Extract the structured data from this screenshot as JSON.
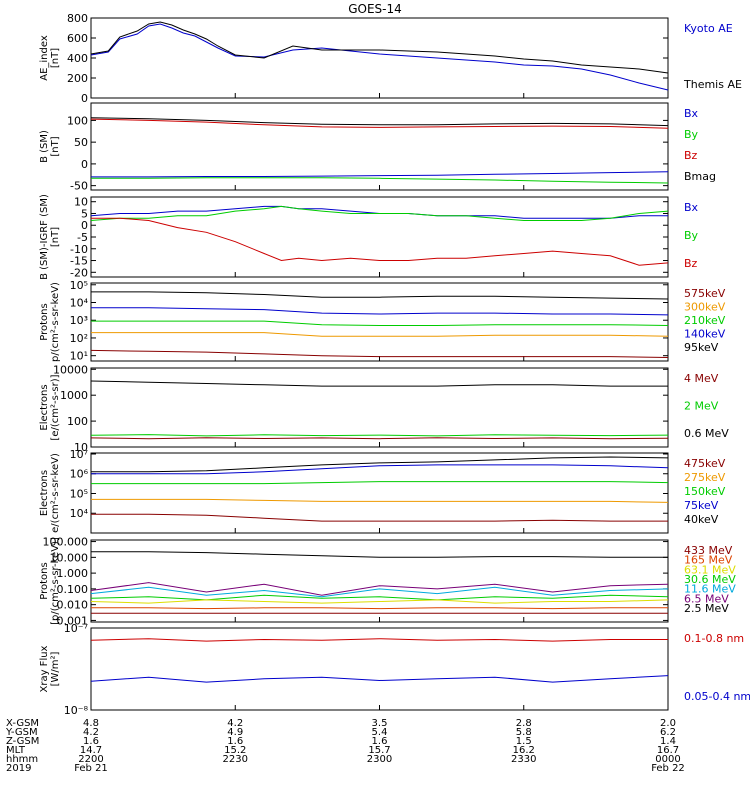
{
  "title": "GOES-14",
  "colors": {
    "black": "#000000",
    "blue": "#0000cc",
    "green": "#00cc00",
    "red": "#cc0000",
    "orange": "#ee9900",
    "cyan": "#00aadd",
    "yellow": "#dddd00",
    "purple": "#770077",
    "darkred": "#880000",
    "redorange": "#dd4400"
  },
  "chart_data": [
    {
      "type": "line",
      "panel": "ae",
      "ylabel": [
        "AE_index",
        "[nT]"
      ],
      "scale": "linear",
      "ylim": [
        0,
        800
      ],
      "yticks": [
        "0",
        "200",
        "400",
        "600",
        "800"
      ],
      "yticks_values": [
        0,
        200,
        400,
        600,
        800
      ],
      "x": [
        0,
        3,
        5,
        8,
        10,
        12,
        14,
        16,
        18,
        20,
        22,
        25,
        30,
        35,
        40,
        45,
        50,
        55,
        60,
        65,
        70,
        75,
        80,
        85,
        90,
        95,
        100
      ],
      "series": [
        {
          "name": "Kyoto AE",
          "color": "blue",
          "values": [
            430,
            460,
            590,
            640,
            720,
            740,
            700,
            650,
            620,
            560,
            500,
            420,
            410,
            480,
            500,
            470,
            440,
            420,
            400,
            380,
            360,
            330,
            320,
            290,
            230,
            150,
            80
          ]
        },
        {
          "name": "Themis AE",
          "color": "black",
          "values": [
            440,
            470,
            610,
            670,
            740,
            760,
            730,
            680,
            640,
            590,
            520,
            430,
            400,
            520,
            480,
            480,
            480,
            470,
            460,
            440,
            420,
            390,
            370,
            330,
            310,
            290,
            250
          ]
        }
      ],
      "legend": [
        {
          "label": "Kyoto AE",
          "color": "blue"
        },
        {
          "label": "Themis AE",
          "color": "black"
        }
      ]
    },
    {
      "type": "line",
      "panel": "bsm",
      "ylabel": [
        "B (SM)",
        "[nT]"
      ],
      "scale": "linear",
      "ylim": [
        -60,
        140
      ],
      "yticks": [
        "-50",
        "0",
        "50",
        "100"
      ],
      "yticks_values": [
        -50,
        0,
        50,
        100
      ],
      "x": [
        0,
        10,
        20,
        30,
        40,
        50,
        60,
        70,
        80,
        90,
        100
      ],
      "series": [
        {
          "name": "Bx",
          "color": "blue",
          "values": [
            -30,
            -30,
            -29,
            -29,
            -28,
            -27,
            -26,
            -24,
            -22,
            -20,
            -18
          ]
        },
        {
          "name": "By",
          "color": "green",
          "values": [
            -33,
            -33,
            -32,
            -32,
            -32,
            -33,
            -35,
            -37,
            -40,
            -42,
            -44
          ]
        },
        {
          "name": "Bz",
          "color": "red",
          "values": [
            103,
            100,
            96,
            90,
            85,
            84,
            85,
            86,
            87,
            86,
            82
          ]
        },
        {
          "name": "Bmag",
          "color": "black",
          "values": [
            106,
            104,
            100,
            95,
            91,
            90,
            90,
            92,
            93,
            92,
            88
          ]
        }
      ],
      "legend": [
        {
          "label": "Bx",
          "color": "blue"
        },
        {
          "label": "By",
          "color": "green"
        },
        {
          "label": "Bz",
          "color": "red"
        },
        {
          "label": "Bmag",
          "color": "black"
        }
      ]
    },
    {
      "type": "line",
      "panel": "bigrf",
      "ylabel": [
        "B (SM)-IGRF (SM)",
        "[nT]"
      ],
      "scale": "linear",
      "ylim": [
        -22,
        12
      ],
      "yticks": [
        "-20",
        "-15",
        "-10",
        "-5",
        "0",
        "5",
        "10"
      ],
      "yticks_values": [
        -20,
        -15,
        -10,
        -5,
        0,
        5,
        10
      ],
      "x": [
        0,
        5,
        10,
        15,
        20,
        25,
        30,
        33,
        36,
        40,
        45,
        50,
        55,
        60,
        65,
        70,
        75,
        80,
        85,
        90,
        95,
        100
      ],
      "series": [
        {
          "name": "Bx",
          "color": "blue",
          "values": [
            4,
            5,
            5,
            6,
            6,
            7,
            8,
            8,
            7,
            7,
            6,
            5,
            5,
            4,
            4,
            4,
            3,
            3,
            3,
            3,
            4,
            4
          ]
        },
        {
          "name": "By",
          "color": "green",
          "values": [
            2,
            3,
            3,
            4,
            4,
            6,
            7,
            8,
            7,
            6,
            5,
            5,
            5,
            4,
            4,
            3,
            2,
            2,
            2,
            3,
            5,
            6
          ]
        },
        {
          "name": "Bz",
          "color": "red",
          "values": [
            3,
            3,
            2,
            -1,
            -3,
            -7,
            -12,
            -15,
            -14,
            -15,
            -14,
            -15,
            -15,
            -14,
            -14,
            -13,
            -12,
            -11,
            -12,
            -13,
            -17,
            -16
          ]
        }
      ],
      "legend": [
        {
          "label": "Bx",
          "color": "blue"
        },
        {
          "label": "By",
          "color": "green"
        },
        {
          "label": "Bz",
          "color": "red"
        }
      ]
    },
    {
      "type": "line",
      "panel": "protons_low",
      "ylabel": [
        "Protons",
        "p/(cm²-s-sr-keV)"
      ],
      "scale": "log",
      "ylim_exp": [
        0.7,
        5.1
      ],
      "yticks": [
        "10¹",
        "10²",
        "10³",
        "10⁴",
        "10⁵"
      ],
      "yticks_values": [
        1,
        2,
        3,
        4,
        5
      ],
      "x": [
        0,
        10,
        20,
        30,
        40,
        50,
        60,
        70,
        80,
        90,
        100
      ],
      "series": [
        {
          "name": "95keV",
          "color": "black",
          "values": [
            4.6,
            4.6,
            4.55,
            4.45,
            4.3,
            4.3,
            4.35,
            4.35,
            4.3,
            4.25,
            4.2
          ]
        },
        {
          "name": "140keV",
          "color": "blue",
          "values": [
            3.7,
            3.7,
            3.65,
            3.6,
            3.4,
            3.35,
            3.4,
            3.4,
            3.35,
            3.35,
            3.3
          ]
        },
        {
          "name": "210keV",
          "color": "green",
          "values": [
            2.95,
            2.95,
            2.95,
            2.95,
            2.75,
            2.7,
            2.7,
            2.75,
            2.75,
            2.75,
            2.7
          ]
        },
        {
          "name": "300keV",
          "color": "orange",
          "values": [
            2.3,
            2.3,
            2.3,
            2.3,
            2.1,
            2.1,
            2.1,
            2.15,
            2.15,
            2.15,
            2.1
          ]
        },
        {
          "name": "575keV",
          "color": "darkred",
          "values": [
            1.3,
            1.25,
            1.2,
            1.1,
            1.0,
            0.95,
            0.95,
            0.95,
            0.95,
            0.95,
            0.9
          ]
        }
      ],
      "legend": [
        {
          "label": "575keV",
          "color": "darkred"
        },
        {
          "label": "300keV",
          "color": "orange"
        },
        {
          "label": "210keV",
          "color": "green"
        },
        {
          "label": "140keV",
          "color": "blue"
        },
        {
          "label": "95keV",
          "color": "black"
        }
      ]
    },
    {
      "type": "line",
      "panel": "electrons_high",
      "ylabel": [
        "Electrons",
        "[e/(cm²-s-sr)]"
      ],
      "scale": "log",
      "ylim_exp": [
        1.0,
        4.05
      ],
      "yticks": [
        "10",
        "100",
        "1000",
        "10000"
      ],
      "yticks_values": [
        1,
        2,
        3,
        4
      ],
      "x": [
        0,
        10,
        20,
        30,
        40,
        50,
        60,
        70,
        80,
        90,
        100
      ],
      "series": [
        {
          "name": "0.6 MeV",
          "color": "black",
          "values": [
            3.55,
            3.5,
            3.45,
            3.4,
            3.35,
            3.35,
            3.35,
            3.4,
            3.4,
            3.35,
            3.35
          ]
        },
        {
          "name": "2 MeV",
          "color": "green",
          "values": [
            1.45,
            1.48,
            1.43,
            1.47,
            1.44,
            1.46,
            1.43,
            1.47,
            1.45,
            1.44,
            1.46
          ]
        },
        {
          "name": "4 MeV",
          "color": "darkred",
          "values": [
            1.35,
            1.32,
            1.36,
            1.33,
            1.35,
            1.32,
            1.36,
            1.33,
            1.35,
            1.32,
            1.34
          ]
        }
      ],
      "legend": [
        {
          "label": "4 MeV",
          "color": "darkred"
        },
        {
          "label": "2 MeV",
          "color": "green"
        },
        {
          "label": "0.6 MeV",
          "color": "black"
        }
      ]
    },
    {
      "type": "line",
      "panel": "electrons_low",
      "ylabel": [
        "Electrons",
        "e/(cm²-s-sr-keV)"
      ],
      "scale": "log",
      "ylim_exp": [
        3.0,
        7.05
      ],
      "yticks": [
        "10⁴",
        "10⁵",
        "10⁶",
        "10⁷"
      ],
      "yticks_values": [
        4,
        5,
        6,
        7
      ],
      "x": [
        0,
        10,
        20,
        30,
        40,
        50,
        60,
        70,
        80,
        90,
        100
      ],
      "series": [
        {
          "name": "40keV",
          "color": "black",
          "values": [
            6.1,
            6.1,
            6.15,
            6.3,
            6.45,
            6.55,
            6.6,
            6.7,
            6.8,
            6.85,
            6.8
          ]
        },
        {
          "name": "75keV",
          "color": "blue",
          "values": [
            6.0,
            6.0,
            6.0,
            6.1,
            6.25,
            6.4,
            6.45,
            6.45,
            6.45,
            6.4,
            6.3
          ]
        },
        {
          "name": "150keV",
          "color": "green",
          "values": [
            5.5,
            5.5,
            5.5,
            5.5,
            5.55,
            5.6,
            5.6,
            5.6,
            5.6,
            5.6,
            5.55
          ]
        },
        {
          "name": "275keV",
          "color": "orange",
          "values": [
            4.7,
            4.7,
            4.7,
            4.65,
            4.6,
            4.6,
            4.6,
            4.6,
            4.6,
            4.6,
            4.55
          ]
        },
        {
          "name": "475keV",
          "color": "darkred",
          "values": [
            3.95,
            3.95,
            3.9,
            3.75,
            3.6,
            3.6,
            3.6,
            3.6,
            3.65,
            3.6,
            3.6
          ]
        }
      ],
      "legend": [
        {
          "label": "475keV",
          "color": "darkred"
        },
        {
          "label": "275keV",
          "color": "orange"
        },
        {
          "label": "150keV",
          "color": "green"
        },
        {
          "label": "75keV",
          "color": "blue"
        },
        {
          "label": "40keV",
          "color": "black"
        }
      ]
    },
    {
      "type": "line",
      "panel": "protons_high",
      "ylabel": [
        "Protons",
        "[p/(cm²-s-sr-keV)]"
      ],
      "scale": "log",
      "ylim_exp": [
        -3.1,
        2.1
      ],
      "yticks": [
        "0.001",
        "0.010",
        "0.100",
        "1.000",
        "10.000",
        "100.000"
      ],
      "yticks_values": [
        -3,
        -2,
        -1,
        0,
        1,
        2
      ],
      "x": [
        0,
        10,
        20,
        30,
        40,
        50,
        60,
        70,
        80,
        90,
        100
      ],
      "series": [
        {
          "name": "2.5 MeV",
          "color": "black",
          "values": [
            1.35,
            1.35,
            1.3,
            1.2,
            1.1,
            1.0,
            1.0,
            1.05,
            1.05,
            1.0,
            1.0
          ]
        },
        {
          "name": "6.5 MeV",
          "color": "purple",
          "values": [
            -1.1,
            -0.6,
            -1.2,
            -0.7,
            -1.4,
            -0.8,
            -1.0,
            -0.7,
            -1.2,
            -0.8,
            -0.7
          ]
        },
        {
          "name": "11.6 MeV",
          "color": "cyan",
          "values": [
            -1.3,
            -0.9,
            -1.4,
            -1.1,
            -1.5,
            -1.0,
            -1.3,
            -0.9,
            -1.4,
            -1.1,
            -1.0
          ]
        },
        {
          "name": "30.6 MeV",
          "color": "green",
          "values": [
            -1.6,
            -1.5,
            -1.7,
            -1.4,
            -1.6,
            -1.5,
            -1.7,
            -1.5,
            -1.6,
            -1.4,
            -1.5
          ]
        },
        {
          "name": "63.1 MeV",
          "color": "yellow",
          "values": [
            -1.8,
            -1.9,
            -1.7,
            -1.8,
            -1.9,
            -1.8,
            -1.7,
            -1.9,
            -1.8,
            -1.8,
            -1.7
          ]
        },
        {
          "name": "165 MeV",
          "color": "redorange",
          "values": [
            -2.2,
            -2.2,
            -2.25,
            -2.2,
            -2.2,
            -2.25,
            -2.2,
            -2.2,
            -2.25,
            -2.2,
            -2.2
          ]
        },
        {
          "name": "433 MeV",
          "color": "darkred",
          "values": [
            -2.55,
            -2.55,
            -2.55,
            -2.55,
            -2.55,
            -2.55,
            -2.55,
            -2.55,
            -2.55,
            -2.55,
            -2.55
          ]
        }
      ],
      "legend": [
        {
          "label": "433 MeV",
          "color": "darkred"
        },
        {
          "label": "165 MeV",
          "color": "redorange"
        },
        {
          "label": "63.1 MeV",
          "color": "yellow"
        },
        {
          "label": "30.6 MeV",
          "color": "green"
        },
        {
          "label": "11.6 MeV",
          "color": "cyan"
        },
        {
          "label": "6.5 MeV",
          "color": "purple"
        },
        {
          "label": "2.5 MeV",
          "color": "black"
        }
      ]
    },
    {
      "type": "line",
      "panel": "xray",
      "ylabel": [
        "Xray Flux",
        "[W/m²]"
      ],
      "scale": "log",
      "ylim_exp": [
        -8,
        -7
      ],
      "yticks": [
        "10⁻⁸",
        "10⁻⁷"
      ],
      "yticks_values": [
        -8,
        -7
      ],
      "x": [
        0,
        10,
        20,
        30,
        40,
        50,
        60,
        70,
        80,
        90,
        100
      ],
      "series": [
        {
          "name": "0.1-0.8 nm",
          "color": "red",
          "values": [
            -7.15,
            -7.13,
            -7.16,
            -7.14,
            -7.15,
            -7.13,
            -7.15,
            -7.14,
            -7.16,
            -7.14,
            -7.14
          ]
        },
        {
          "name": "0.05-0.4 nm",
          "color": "blue",
          "values": [
            -7.65,
            -7.6,
            -7.66,
            -7.62,
            -7.6,
            -7.64,
            -7.62,
            -7.6,
            -7.66,
            -7.62,
            -7.58
          ]
        }
      ],
      "legend": [
        {
          "label": "0.1-0.8 nm",
          "color": "red"
        },
        {
          "label": "0.05-0.4 nm",
          "color": "blue"
        }
      ]
    }
  ],
  "xaxis": {
    "row_labels": [
      "X-GSM",
      "Y-GSM",
      "Z-GSM",
      "MLT",
      "hhmm",
      "2019"
    ],
    "columns": [
      {
        "pos": 0,
        "values": [
          "4.8",
          "4.2",
          "1.6",
          "14.7",
          "2200",
          "Feb 21"
        ]
      },
      {
        "pos": 25,
        "values": [
          "4.2",
          "4.9",
          "1.6",
          "15.2",
          "2230",
          ""
        ]
      },
      {
        "pos": 50,
        "values": [
          "3.5",
          "5.4",
          "1.6",
          "15.7",
          "2300",
          ""
        ]
      },
      {
        "pos": 75,
        "values": [
          "2.8",
          "5.8",
          "1.5",
          "16.2",
          "2330",
          ""
        ]
      },
      {
        "pos": 100,
        "values": [
          "2.0",
          "6.2",
          "1.4",
          "16.7",
          "0000",
          "Feb 22"
        ]
      }
    ]
  }
}
